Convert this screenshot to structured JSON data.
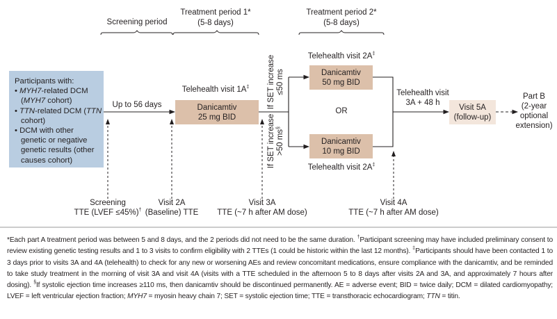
{
  "periods": {
    "screening": "Screening period",
    "treatment1": {
      "title": "Treatment period 1*",
      "days": "(5-8 days)"
    },
    "treatment2": {
      "title": "Treatment period 2*",
      "days": "(5-8 days)"
    }
  },
  "participants": {
    "heading": "Participants with:",
    "items": [
      {
        "a": "MYH7",
        "b": "-related DCM (",
        "c": "MYH7",
        "d": " cohort)"
      },
      {
        "a": "TTN",
        "b": "-related DCM (",
        "c": "TTN",
        "d": " cohort)"
      },
      {
        "text": "DCM with other genetic or negative genetic results (other causes cohort)"
      }
    ]
  },
  "flow": {
    "up_to": "Up to 56 days",
    "tele1": "Telehealth visit 1A",
    "tele1_mark": "‡",
    "dose25": {
      "l1": "Danicamtiv",
      "l2": "25 mg BID"
    },
    "cond_low": {
      "l1": "If SET increase",
      "l2": "≤50 ms"
    },
    "cond_high": {
      "l1": "If SET increase",
      "l2": ">50 ms",
      "mark": "§"
    },
    "tele2": "Telehealth visit 2A",
    "tele2_mark": "‡",
    "dose50": {
      "l1": "Danicamtiv",
      "l2": "50 mg BID"
    },
    "or": "OR",
    "dose10": {
      "l1": "Danicamtiv",
      "l2": "10 mg BID"
    },
    "tele3": {
      "l1": "Telehealth visit",
      "l2": "3A + 48 h"
    },
    "visit5": {
      "l1": "Visit 5A",
      "l2": "(follow-up)"
    },
    "partb": {
      "l1": "Part B",
      "l2": "(2-year",
      "l3": "optional",
      "l4": "extension)"
    }
  },
  "visits": [
    {
      "l1": "Screening",
      "l2": "TTE (LVEF ≤45%)",
      "mark": "†"
    },
    {
      "l1": "Visit 2A",
      "l2": "(Baseline) TTE"
    },
    {
      "l1": "Visit 3A",
      "l2": "TTE (~7 h after AM dose)"
    },
    {
      "l1": "Visit 4A",
      "l2": "TTE (~7 h after AM dose)"
    }
  ],
  "footnote": {
    "s1": "*Each part A treatment period was between 5 and 8 days, and the 2 periods did not need to be the same duration. ",
    "m2": "†",
    "s2": "Participant screening may have included preliminary consent to review existing genetic testing results and 1 to 3 visits to confirm eligibility with 2 TTEs (1 could be historic within the last 12 months). ",
    "m3": "‡",
    "s3": "Participants should have been contacted 1 to 3 days prior to visits 3A and 4A (telehealth) to check for any new or worsening AEs and review concomitant medications, ensure compliance with the danicamtiv, and be reminded to take study treatment in the morning of visit 3A and visit 4A (visits with a TTE scheduled in the afternoon 5 to 8 days after visits 2A and 3A, and approximately 7 hours after dosing). ",
    "m4": "§",
    "s4": "If systolic ejection time increases ≥110 ms, then danicamtiv should be discontinued permanently. AE = adverse event; BID = twice daily; DCM = dilated cardiomyopathy; LVEF = left ventricular ejection fraction; ",
    "i1": "MYH7",
    "s5": " = myosin heavy chain 7; SET = systolic ejection time; TTE = transthoracic echocardiogram; ",
    "i2": "TTN",
    "s6": " = titin."
  },
  "colors": {
    "blue_box": "#b9cde1",
    "dose_box": "#dcc0aa",
    "followup_box": "#f3e6dc"
  }
}
